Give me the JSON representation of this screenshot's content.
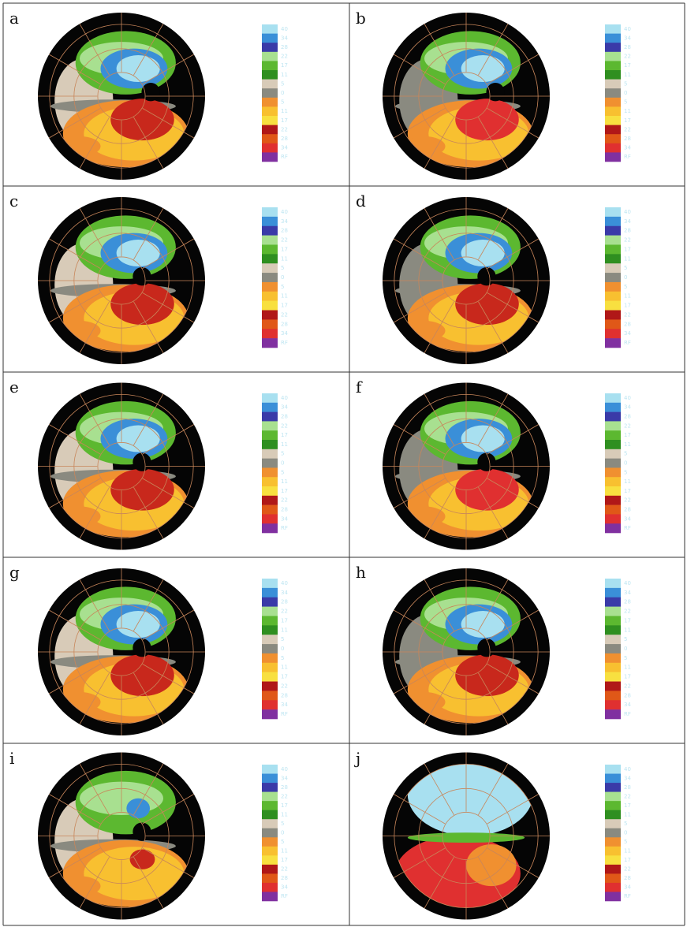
{
  "panels": [
    {
      "label": "a"
    },
    {
      "label": "b"
    },
    {
      "label": "c"
    },
    {
      "label": "d"
    },
    {
      "label": "e"
    },
    {
      "label": "f"
    },
    {
      "label": "g"
    },
    {
      "label": "h"
    },
    {
      "label": "i"
    },
    {
      "label": "j"
    }
  ],
  "colorbar": {
    "labels": [
      "40",
      "34",
      "28",
      "22",
      "17",
      "11",
      "5",
      "0",
      "5",
      "11",
      "17",
      "22",
      "28",
      "34",
      "RF"
    ],
    "colors": [
      "#a8e0f0",
      "#3a8fd8",
      "#3a3aa8",
      "#a8e090",
      "#5cb830",
      "#2f8f20",
      "#d8cbb8",
      "#8a8a80",
      "#f09030",
      "#f8c030",
      "#f8e040",
      "#b01818",
      "#e05818",
      "#e03030",
      "#8030a0"
    ]
  }
}
